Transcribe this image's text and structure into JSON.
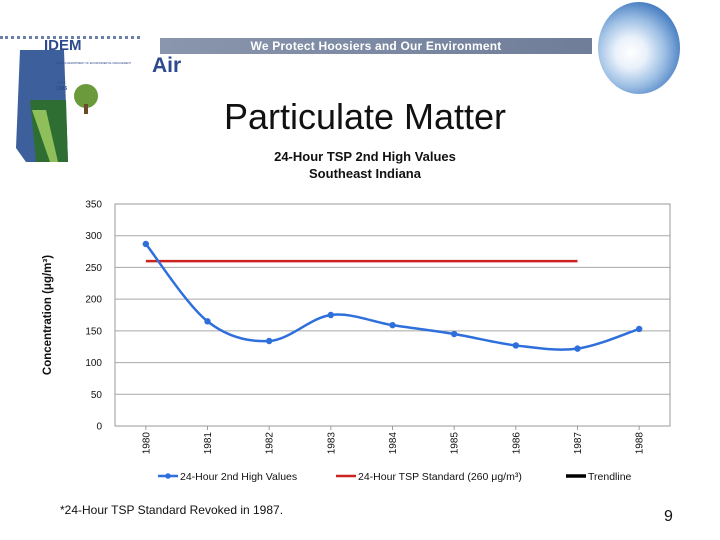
{
  "header": {
    "org_short": "IDEM",
    "org_full": "INDIANA DEPARTMENT OF ENVIRONMENTAL MANAGEMENT",
    "est_label": "EST.",
    "est_year": "1986",
    "slogan": "We Protect Hoosiers and Our Environment",
    "section": "Air"
  },
  "slide": {
    "title": "Particulate Matter",
    "footnote": "*24-Hour TSP Standard Revoked in 1987.",
    "page_number": "9"
  },
  "colors": {
    "series_values": "#2e6fdc",
    "standard": "#cc2222",
    "trendline": "#000000",
    "slogan_bar": "#7a879f",
    "brand_blue": "#2c4a8c",
    "brand_green": "#6a9a3a"
  },
  "chart_data": {
    "type": "line",
    "title": "24-Hour TSP 2nd High Values",
    "subtitle": "Southeast Indiana",
    "xlabel": "",
    "ylabel": "Concentration (μg/m³)",
    "ylim": [
      0,
      350
    ],
    "yticks": [
      0,
      50,
      100,
      150,
      200,
      250,
      300,
      350
    ],
    "categories": [
      "1980",
      "1981",
      "1982",
      "1983",
      "1984",
      "1985",
      "1986",
      "1987",
      "1988"
    ],
    "grid": true,
    "legend_position": "bottom",
    "series": [
      {
        "name": "24-Hour 2nd High Values",
        "style": "smooth-line-markers",
        "values": [
          287,
          165,
          134,
          175,
          159,
          145,
          127,
          122,
          153
        ]
      },
      {
        "name": "24-Hour TSP Standard (260 μg/m³)",
        "style": "line",
        "value": 260,
        "x_start": "1980",
        "x_end": "1987"
      },
      {
        "name": "Trendline",
        "style": "line"
      }
    ]
  }
}
